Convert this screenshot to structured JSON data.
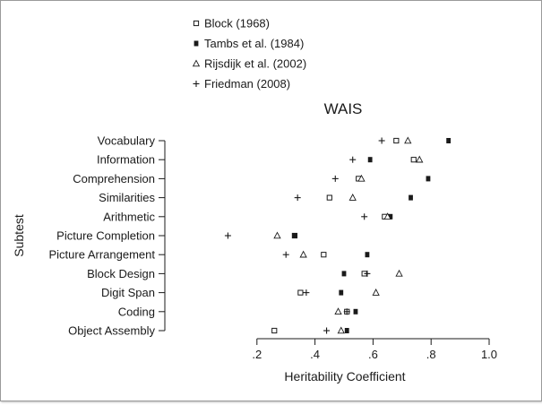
{
  "chart_data": {
    "type": "scatter",
    "title": "WAIS",
    "xlabel": "Heritability Coefficient",
    "ylabel": "Subtest",
    "xlim": [
      0.0,
      1.0
    ],
    "xticks": [
      0.2,
      0.4,
      0.6,
      0.8,
      1.0
    ],
    "xtick_labels": [
      ".2",
      ".4",
      ".6",
      ".8",
      "1.0"
    ],
    "grid": false,
    "legend_position": "top-left",
    "categories": [
      "Vocabulary",
      "Information",
      "Comprehension",
      "Similarities",
      "Arithmetic",
      "Picture Completion",
      "Picture Arrangement",
      "Block Design",
      "Digit Span",
      "Coding",
      "Object Assembly"
    ],
    "series": [
      {
        "name": "Block (1968)",
        "marker": "open-square",
        "values": [
          0.68,
          0.74,
          0.55,
          0.45,
          0.64,
          0.33,
          0.43,
          0.57,
          0.35,
          0.51,
          0.26
        ]
      },
      {
        "name": "Tambs et al. (1984)",
        "marker": "filled-square",
        "values": [
          0.86,
          0.59,
          0.79,
          0.73,
          0.66,
          0.33,
          0.58,
          0.5,
          0.49,
          0.54,
          0.51
        ]
      },
      {
        "name": "Rijsdijk et al. (2002)",
        "marker": "open-triangle",
        "values": [
          0.72,
          0.76,
          0.56,
          0.53,
          0.65,
          0.27,
          0.36,
          0.69,
          0.61,
          0.48,
          0.49
        ]
      },
      {
        "name": "Friedman (2008)",
        "marker": "plus",
        "values": [
          0.63,
          0.53,
          0.47,
          0.34,
          0.57,
          0.1,
          0.3,
          0.58,
          0.37,
          0.51,
          0.44
        ]
      }
    ]
  }
}
